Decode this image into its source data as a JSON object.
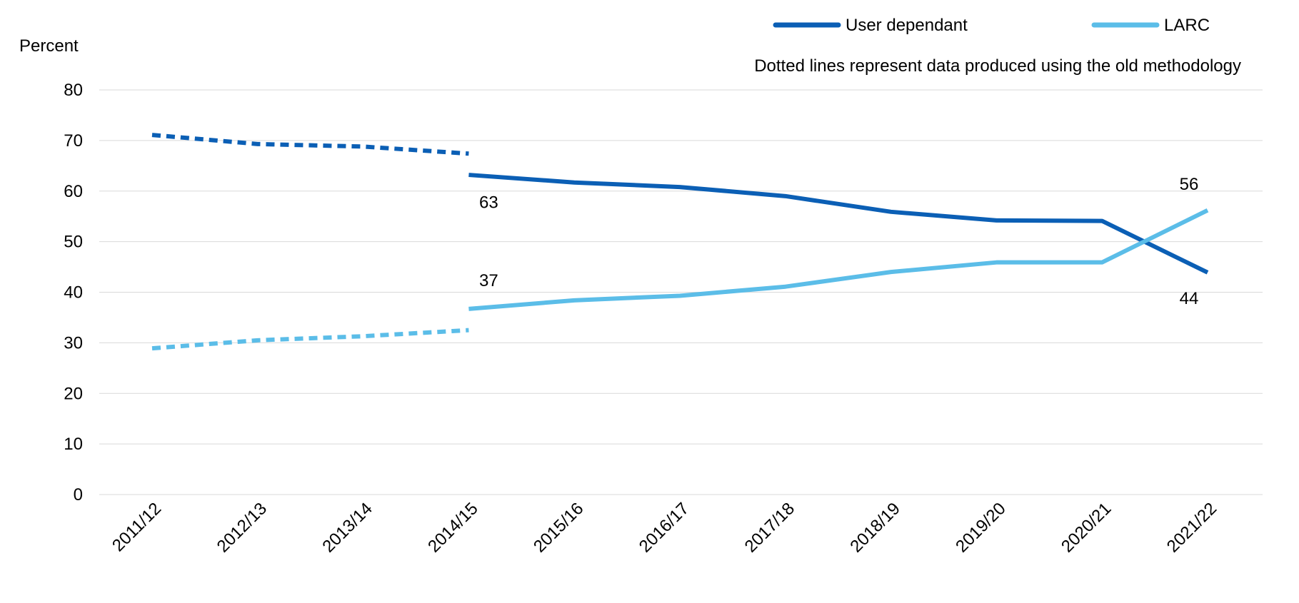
{
  "chart_data": {
    "type": "line",
    "ylabel": "Percent",
    "ylim": [
      0,
      80
    ],
    "yticks": [
      "0",
      "10",
      "20",
      "30",
      "40",
      "50",
      "60",
      "70",
      "80"
    ],
    "grid": true,
    "legend_position": "top-right",
    "note": "Dotted lines represent data produced using the old methodology",
    "categories": [
      "2011/12",
      "2012/13",
      "2013/14",
      "2014/15",
      "2015/16",
      "2016/17",
      "2017/18",
      "2018/19",
      "2019/20",
      "2020/21",
      "2021/22"
    ],
    "series": [
      {
        "name": "User dependant",
        "color": "#0b5fb5",
        "old_methodology": [
          71.1,
          69.3,
          68.8,
          67.4
        ],
        "new_methodology": [
          63.2,
          61.7,
          60.8,
          59.0,
          55.9,
          54.2,
          54.1,
          43.9
        ],
        "labels": [
          {
            "category": "2014/15",
            "value": 63,
            "text": "63",
            "placement": "below"
          },
          {
            "category": "2021/22",
            "value": 44,
            "text": "44",
            "placement": "below"
          }
        ]
      },
      {
        "name": "LARC",
        "color": "#5bbde8",
        "old_methodology": [
          28.9,
          30.5,
          31.3,
          32.5
        ],
        "new_methodology": [
          36.7,
          38.4,
          39.3,
          41.1,
          44.0,
          45.9,
          45.9,
          56.2
        ],
        "labels": [
          {
            "category": "2014/15",
            "value": 37,
            "text": "37",
            "placement": "above"
          },
          {
            "category": "2021/22",
            "value": 56,
            "text": "56",
            "placement": "above"
          }
        ]
      }
    ]
  }
}
